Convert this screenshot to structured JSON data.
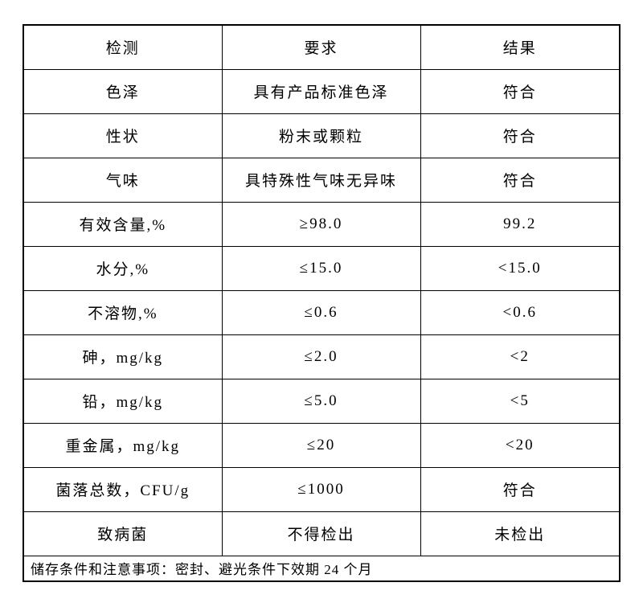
{
  "document": {
    "type": "quality-inspection-table",
    "background_color": "#ffffff",
    "border_color": "#000000",
    "text_color": "#000000"
  },
  "table": {
    "headers": {
      "test": "检测",
      "requirement": "要求",
      "result": "结果"
    },
    "rows": [
      {
        "item": "色泽",
        "requirement": "具有产品标准色泽",
        "result": "符合"
      },
      {
        "item": "性状",
        "requirement": "粉末或颗粒",
        "result": "符合"
      },
      {
        "item": "气味",
        "requirement": "具特殊性气味无异味",
        "result": "符合"
      },
      {
        "item": "有效含量,%",
        "requirement": "≥98.0",
        "result": "99.2"
      },
      {
        "item": "水分,%",
        "requirement": "≤15.0",
        "result": "<15.0"
      },
      {
        "item": "不溶物,%",
        "requirement": "≤0.6",
        "result": "<0.6"
      },
      {
        "item": "砷，mg/kg",
        "requirement": "≤2.0",
        "result": "<2"
      },
      {
        "item": "铅，mg/kg",
        "requirement": "≤5.0",
        "result": "<5"
      },
      {
        "item": "重金属，mg/kg",
        "requirement": "≤20",
        "result": "<20"
      },
      {
        "item": "菌落总数，CFU/g",
        "requirement": "≤1000",
        "result": "符合"
      },
      {
        "item": "致病菌",
        "requirement": "不得检出",
        "result": "未检出"
      }
    ],
    "footer": "储存条件和注意事项：密封、避光条件下效期 24 个月"
  }
}
